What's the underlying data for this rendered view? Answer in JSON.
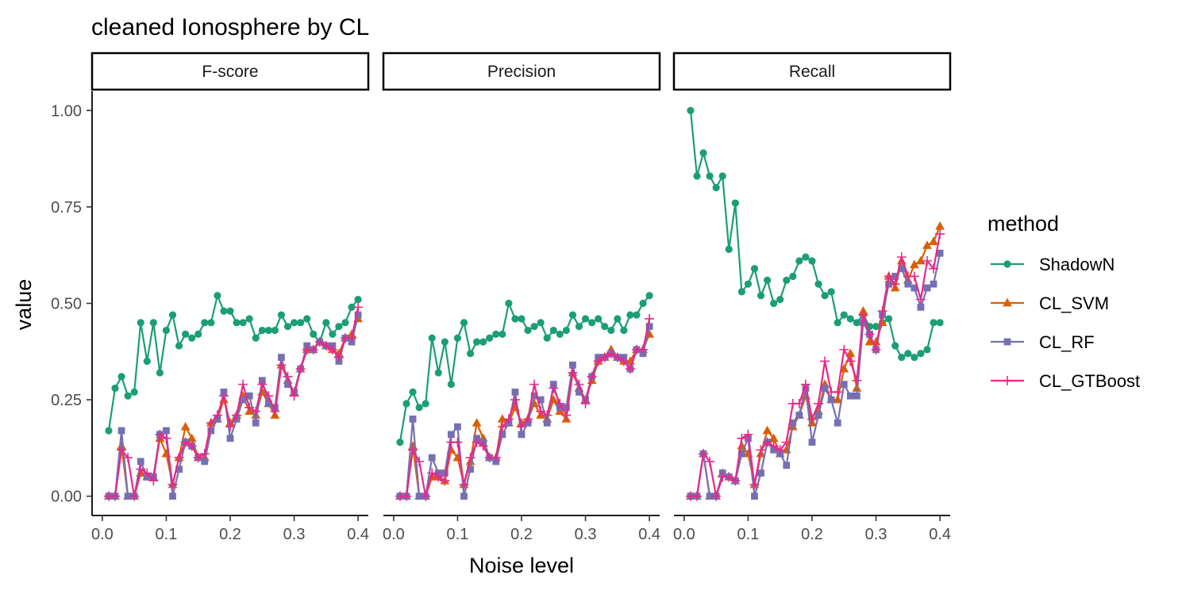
{
  "chart_data": {
    "type": "line",
    "title": "cleaned Ionosphere by CL",
    "xlabel": "Noise level",
    "ylabel": "value",
    "xlim": [
      0.0,
      0.4
    ],
    "ylim": [
      0.0,
      1.0
    ],
    "x_ticks": [
      "0.0",
      "0.1",
      "0.2",
      "0.3",
      "0.4"
    ],
    "y_ticks": [
      "0.00",
      "0.25",
      "0.50",
      "0.75",
      "1.00"
    ],
    "grid": false,
    "legend": {
      "title": "method",
      "position": "right",
      "entries": [
        "ShadowN",
        "CL_SVM",
        "CL_RF",
        "CL_GTBoost"
      ]
    },
    "colors": {
      "ShadowN": "#1b9e77",
      "CL_SVM": "#d95f02",
      "CL_RF": "#7570b3",
      "CL_GTBoost": "#e7298a"
    },
    "markers": {
      "ShadowN": "circle",
      "CL_SVM": "triangle",
      "CL_RF": "square",
      "CL_GTBoost": "plus"
    },
    "x": [
      0.01,
      0.02,
      0.03,
      0.04,
      0.05,
      0.06,
      0.07,
      0.08,
      0.09,
      0.1,
      0.11,
      0.12,
      0.13,
      0.14,
      0.15,
      0.16,
      0.17,
      0.18,
      0.19,
      0.2,
      0.21,
      0.22,
      0.23,
      0.24,
      0.25,
      0.26,
      0.27,
      0.28,
      0.29,
      0.3,
      0.31,
      0.32,
      0.33,
      0.34,
      0.35,
      0.36,
      0.37,
      0.38,
      0.39,
      0.4
    ],
    "facets": [
      {
        "label": "F-score",
        "series": [
          {
            "name": "ShadowN",
            "values": [
              0.17,
              0.28,
              0.31,
              0.26,
              0.27,
              0.45,
              0.35,
              0.45,
              0.32,
              0.43,
              0.47,
              0.39,
              0.42,
              0.41,
              0.42,
              0.45,
              0.45,
              0.52,
              0.48,
              0.48,
              0.45,
              0.45,
              0.46,
              0.41,
              0.43,
              0.43,
              0.43,
              0.47,
              0.44,
              0.45,
              0.45,
              0.46,
              0.42,
              0.4,
              0.45,
              0.42,
              0.44,
              0.45,
              0.49,
              0.51
            ]
          },
          {
            "name": "CL_SVM",
            "values": [
              0.0,
              0.0,
              0.13,
              0.0,
              0.0,
              0.06,
              0.05,
              0.05,
              0.15,
              0.11,
              0.03,
              0.1,
              0.18,
              0.15,
              0.1,
              0.1,
              0.19,
              0.2,
              0.25,
              0.19,
              0.21,
              0.26,
              0.22,
              0.21,
              0.27,
              0.24,
              0.21,
              0.34,
              0.3,
              0.27,
              0.33,
              0.38,
              0.38,
              0.4,
              0.39,
              0.38,
              0.37,
              0.41,
              0.42,
              0.46
            ]
          },
          {
            "name": "CL_RF",
            "values": [
              0.0,
              0.0,
              0.17,
              0.0,
              0.0,
              0.09,
              0.05,
              0.05,
              0.16,
              0.17,
              0.0,
              0.07,
              0.14,
              0.13,
              0.1,
              0.09,
              0.17,
              0.2,
              0.27,
              0.15,
              0.2,
              0.25,
              0.26,
              0.19,
              0.3,
              0.24,
              0.23,
              0.36,
              0.29,
              0.27,
              0.33,
              0.39,
              0.38,
              0.4,
              0.39,
              0.39,
              0.35,
              0.41,
              0.4,
              0.47
            ]
          },
          {
            "name": "CL_GTBoost",
            "values": [
              0.0,
              0.0,
              0.12,
              0.1,
              0.0,
              0.07,
              0.06,
              0.04,
              0.16,
              0.15,
              0.03,
              0.1,
              0.14,
              0.13,
              0.1,
              0.11,
              0.19,
              0.21,
              0.26,
              0.18,
              0.21,
              0.29,
              0.23,
              0.22,
              0.29,
              0.26,
              0.22,
              0.34,
              0.31,
              0.26,
              0.33,
              0.38,
              0.38,
              0.4,
              0.39,
              0.38,
              0.36,
              0.41,
              0.41,
              0.49
            ]
          }
        ]
      },
      {
        "label": "Precision",
        "series": [
          {
            "name": "ShadowN",
            "values": [
              0.14,
              0.24,
              0.27,
              0.23,
              0.24,
              0.41,
              0.32,
              0.4,
              0.29,
              0.41,
              0.45,
              0.37,
              0.4,
              0.4,
              0.41,
              0.42,
              0.42,
              0.5,
              0.46,
              0.46,
              0.43,
              0.44,
              0.45,
              0.41,
              0.43,
              0.42,
              0.43,
              0.47,
              0.44,
              0.46,
              0.45,
              0.46,
              0.44,
              0.43,
              0.46,
              0.43,
              0.47,
              0.47,
              0.5,
              0.52
            ]
          },
          {
            "name": "CL_SVM",
            "values": [
              0.0,
              0.0,
              0.13,
              0.0,
              0.0,
              0.05,
              0.05,
              0.04,
              0.12,
              0.1,
              0.03,
              0.09,
              0.19,
              0.15,
              0.1,
              0.1,
              0.2,
              0.19,
              0.23,
              0.19,
              0.2,
              0.24,
              0.21,
              0.2,
              0.25,
              0.22,
              0.2,
              0.32,
              0.28,
              0.25,
              0.3,
              0.35,
              0.36,
              0.38,
              0.36,
              0.35,
              0.35,
              0.38,
              0.38,
              0.42
            ]
          },
          {
            "name": "CL_RF",
            "values": [
              0.0,
              0.0,
              0.2,
              0.0,
              0.0,
              0.1,
              0.06,
              0.06,
              0.16,
              0.18,
              0.0,
              0.07,
              0.15,
              0.14,
              0.1,
              0.09,
              0.16,
              0.19,
              0.27,
              0.16,
              0.19,
              0.26,
              0.25,
              0.19,
              0.29,
              0.23,
              0.23,
              0.34,
              0.27,
              0.25,
              0.31,
              0.36,
              0.36,
              0.37,
              0.36,
              0.36,
              0.33,
              0.38,
              0.37,
              0.44
            ]
          },
          {
            "name": "CL_GTBoost",
            "values": [
              0.0,
              0.0,
              0.12,
              0.09,
              0.0,
              0.06,
              0.05,
              0.04,
              0.14,
              0.14,
              0.03,
              0.1,
              0.14,
              0.13,
              0.1,
              0.1,
              0.18,
              0.2,
              0.25,
              0.18,
              0.2,
              0.29,
              0.22,
              0.21,
              0.28,
              0.24,
              0.21,
              0.32,
              0.29,
              0.24,
              0.31,
              0.35,
              0.36,
              0.37,
              0.36,
              0.35,
              0.33,
              0.38,
              0.38,
              0.46
            ]
          }
        ]
      },
      {
        "label": "Recall",
        "series": [
          {
            "name": "ShadowN",
            "values": [
              1.0,
              0.83,
              0.89,
              0.83,
              0.8,
              0.83,
              0.64,
              0.76,
              0.53,
              0.55,
              0.59,
              0.52,
              0.56,
              0.5,
              0.51,
              0.56,
              0.57,
              0.61,
              0.62,
              0.61,
              0.55,
              0.52,
              0.53,
              0.45,
              0.47,
              0.46,
              0.45,
              0.47,
              0.44,
              0.44,
              0.45,
              0.46,
              0.39,
              0.36,
              0.37,
              0.36,
              0.37,
              0.38,
              0.45,
              0.45
            ]
          },
          {
            "name": "CL_SVM",
            "values": [
              0.0,
              0.0,
              0.11,
              0.0,
              0.0,
              0.06,
              0.05,
              0.04,
              0.13,
              0.11,
              0.03,
              0.11,
              0.17,
              0.15,
              0.11,
              0.12,
              0.18,
              0.21,
              0.26,
              0.19,
              0.22,
              0.29,
              0.25,
              0.25,
              0.33,
              0.37,
              0.28,
              0.48,
              0.4,
              0.4,
              0.45,
              0.57,
              0.54,
              0.61,
              0.56,
              0.6,
              0.61,
              0.65,
              0.66,
              0.7
            ]
          },
          {
            "name": "CL_RF",
            "values": [
              0.0,
              0.0,
              0.11,
              0.0,
              0.0,
              0.06,
              0.05,
              0.04,
              0.11,
              0.15,
              0.0,
              0.06,
              0.14,
              0.12,
              0.11,
              0.08,
              0.19,
              0.21,
              0.28,
              0.14,
              0.21,
              0.28,
              0.25,
              0.19,
              0.29,
              0.26,
              0.26,
              0.45,
              0.42,
              0.38,
              0.47,
              0.55,
              0.57,
              0.59,
              0.55,
              0.54,
              0.49,
              0.54,
              0.55,
              0.63
            ]
          },
          {
            "name": "CL_GTBoost",
            "values": [
              0.0,
              0.0,
              0.11,
              0.09,
              0.0,
              0.05,
              0.05,
              0.04,
              0.15,
              0.16,
              0.03,
              0.12,
              0.14,
              0.13,
              0.12,
              0.14,
              0.24,
              0.24,
              0.29,
              0.2,
              0.24,
              0.35,
              0.27,
              0.27,
              0.38,
              0.35,
              0.3,
              0.47,
              0.42,
              0.38,
              0.48,
              0.57,
              0.55,
              0.62,
              0.57,
              0.57,
              0.51,
              0.61,
              0.59,
              0.68
            ]
          }
        ]
      }
    ]
  }
}
